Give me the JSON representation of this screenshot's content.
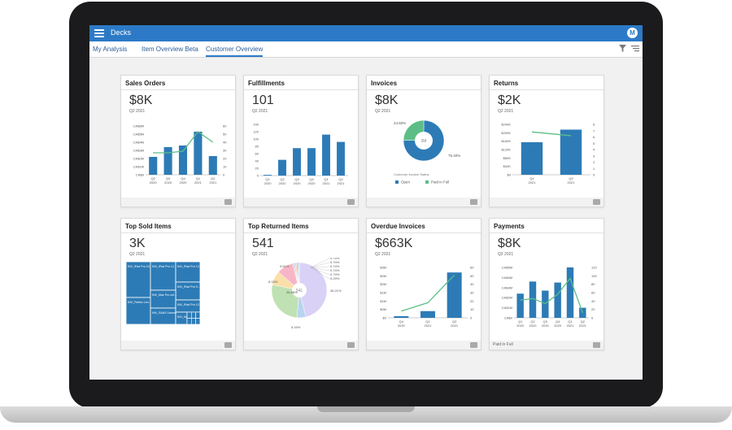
{
  "app": {
    "title": "Decks",
    "avatar_initial": "M"
  },
  "tabs": [
    {
      "label": "My Analysis",
      "active": false
    },
    {
      "label": "Item Overview Beta",
      "active": false
    },
    {
      "label": "Customer Overview",
      "active": true
    }
  ],
  "colors": {
    "bar": "#2d7bb6",
    "line": "#5cbe86",
    "topbar": "#2c7ac7"
  },
  "cards": {
    "sales_orders": {
      "title": "Sales Orders",
      "kpi": "$8K",
      "period": "Q2 2021"
    },
    "fulfillments": {
      "title": "Fulfillments",
      "kpi": "101",
      "period": "Q2 2021"
    },
    "invoices": {
      "title": "Invoices",
      "kpi": "$8K",
      "period": "Q2 2021",
      "donut_center": "3M",
      "status_caption": "Customer Invoice Status"
    },
    "returns": {
      "title": "Returns",
      "kpi": "$2K",
      "period": "Q2 2021"
    },
    "top_sold": {
      "title": "Top Sold Items",
      "kpi": "3K",
      "period": "Q2 2021"
    },
    "top_returned": {
      "title": "Top Returned Items",
      "kpi": "541",
      "period": "Q2 2021",
      "pie_center": "541"
    },
    "overdue": {
      "title": "Overdue Invoices",
      "kpi": "$663K",
      "period": "Q2 2021"
    },
    "payments": {
      "title": "Payments",
      "kpi": "$8K",
      "period": "Q2 2021",
      "footer_note": "Paid in Full"
    }
  },
  "chart_data": [
    {
      "id": "sales_orders",
      "type": "bar",
      "categories": [
        "Q2 2020",
        "Q3 2020",
        "Q4 2020",
        "Q1 2021",
        "Q2 2021"
      ],
      "left_ticks": [
        "CA$6M",
        "CA$5M",
        "CA$4M",
        "CA$3M",
        "CA$2M",
        "CA$1M",
        "CA$0"
      ],
      "right_ticks": [
        "60",
        "50",
        "40",
        "30",
        "20",
        "10",
        "0"
      ],
      "ylim": [
        0,
        6
      ],
      "y2lim": [
        0,
        60
      ],
      "series": [
        {
          "kind": "bar",
          "values": [
            2.2,
            3.4,
            3.6,
            5.3,
            2.3
          ]
        },
        {
          "kind": "line",
          "values": [
            27,
            27,
            29,
            53,
            40
          ]
        }
      ]
    },
    {
      "id": "fulfillments",
      "type": "bar",
      "categories": [
        "Q1 2020",
        "Q2 2020",
        "Q3 2020",
        "Q4 2020",
        "Q1 2021",
        "Q2 2021"
      ],
      "left_ticks": [
        "140",
        "120",
        "100",
        "80",
        "60",
        "40",
        "20",
        "0"
      ],
      "ylim": [
        0,
        140
      ],
      "series": [
        {
          "kind": "bar",
          "values": [
            2,
            43,
            75,
            75,
            112,
            92
          ]
        }
      ]
    },
    {
      "id": "invoices",
      "type": "pie",
      "donut": true,
      "slices": [
        {
          "label": "Open",
          "pct": 75.4,
          "color": "#2d7bb6"
        },
        {
          "label": "Paid in Full",
          "pct": 24.6,
          "color": "#5cbe86"
        }
      ],
      "slice_labels": [
        "75.40%",
        "24.60%"
      ]
    },
    {
      "id": "returns",
      "type": "bar",
      "categories": [
        "Q1 2021",
        "Q2 2021"
      ],
      "left_ticks": [
        "$240K",
        "$200K",
        "$160K",
        "$120K",
        "$80K",
        "$40K",
        "$0"
      ],
      "right_ticks": [
        "8",
        "7",
        "6",
        "5",
        "4",
        "3",
        "2",
        "1",
        "0"
      ],
      "ylim": [
        0,
        240
      ],
      "y2lim": [
        0,
        8
      ],
      "series": [
        {
          "kind": "bar",
          "values": [
            155,
            215
          ]
        },
        {
          "kind": "line",
          "values": [
            6.8,
            6.2
          ]
        }
      ]
    },
    {
      "id": "top_sold",
      "type": "heatmap",
      "cells": [
        {
          "label": "INV_iPad Pro 10.5 inch 128 GB",
          "value": 30
        },
        {
          "label": "INV_Firefox Lenovo X",
          "value": 28
        },
        {
          "label": "INV_iPad Pro 12.9 inch 128 GB",
          "value": 12
        },
        {
          "label": "INV_iPad Pro 12.9 inch 128...",
          "value": 10
        },
        {
          "label": "INV_iPad Pro 9.7 inch 32GB",
          "value": 10
        },
        {
          "label": "INV_Mac Pro with TouchBar",
          "value": 9
        },
        {
          "label": "INV_SAAS License A",
          "value": 8
        },
        {
          "label": "INV_iPad Pro 12.9 inch",
          "value": 7
        },
        {
          "label": "INV_Mac Pro A",
          "value": 5
        }
      ]
    },
    {
      "id": "top_returned",
      "type": "pie",
      "slices": [
        {
          "pct": 46.21,
          "color": "#d9d1f6"
        },
        {
          "pct": 5.16,
          "color": "#b8d4ee"
        },
        {
          "pct": 26.88,
          "color": "#bfe1b3"
        },
        {
          "pct": 8.15,
          "color": "#fbdfa8"
        },
        {
          "pct": 9.61,
          "color": "#f7b6c7"
        },
        {
          "pct": 0.74,
          "color": "#efb1c5"
        },
        {
          "pct": 0.74,
          "color": "#a9dce3"
        },
        {
          "pct": 0.74,
          "color": "#f2c6a2"
        },
        {
          "pct": 0.74,
          "color": "#c5b0e6"
        },
        {
          "pct": 0.74,
          "color": "#9fc1e8"
        },
        {
          "pct": 0.29,
          "color": "#e6a57a"
        }
      ],
      "slice_labels": [
        "46.21%",
        "5.16%",
        "26.88%",
        "8.15%",
        "9.61%",
        "0.74%",
        "0.74%",
        "0.74%",
        "0.74%",
        "0.74%",
        "0.29%"
      ]
    },
    {
      "id": "overdue",
      "type": "bar",
      "categories": [
        "Q4 2020",
        "Q1 2021",
        "Q2 2021"
      ],
      "left_ticks": [
        "$3M",
        "$2M",
        "$2M",
        "$1M",
        "$1M",
        "$0M",
        "$0"
      ],
      "right_ticks": [
        "60",
        "50",
        "40",
        "30",
        "20",
        "10",
        "0"
      ],
      "ylim": [
        0,
        3
      ],
      "y2lim": [
        0,
        60
      ],
      "series": [
        {
          "kind": "bar",
          "values": [
            0.1,
            0.4,
            2.7
          ]
        },
        {
          "kind": "line",
          "values": [
            8,
            18,
            51
          ]
        }
      ]
    },
    {
      "id": "payments",
      "type": "bar",
      "categories": [
        "Q1 2020",
        "Q2 2020",
        "Q3 2020",
        "Q4 2020",
        "Q1 2021",
        "Q2 2021"
      ],
      "left_ticks": [
        "CA$5M",
        "CA$4M",
        "CA$3M",
        "CA$2M",
        "CA$1M",
        "CA$0"
      ],
      "right_ticks": [
        "120",
        "100",
        "80",
        "60",
        "40",
        "20",
        "0"
      ],
      "ylim": [
        0,
        5
      ],
      "y2lim": [
        0,
        120
      ],
      "series": [
        {
          "kind": "bar",
          "values": [
            2.4,
            3.6,
            2.7,
            3.5,
            5.0,
            1.0
          ]
        },
        {
          "kind": "line",
          "values": [
            42,
            46,
            34,
            56,
            94,
            12
          ]
        }
      ]
    }
  ]
}
